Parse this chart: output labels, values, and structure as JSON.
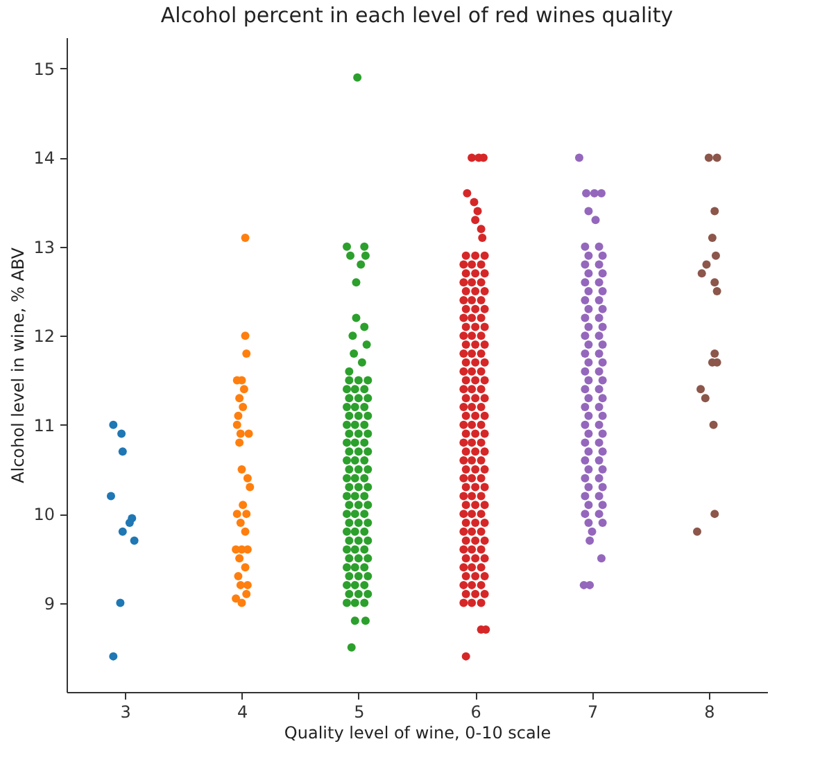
{
  "chart_data": {
    "type": "scatter",
    "title": "Alcohol percent in each level of red wines quality",
    "xlabel": "Quality level of wine, 0-10 scale",
    "ylabel": "Alcohol level in wine, % ABV",
    "xlim": [
      2.5,
      8.5
    ],
    "xticks": [
      3,
      4,
      5,
      6,
      7,
      8
    ],
    "ylim": [
      8,
      15.35
    ],
    "yticks": [
      9,
      10,
      11,
      12,
      13,
      14,
      15
    ],
    "marker": "circle",
    "series": [
      {
        "color": "#1f77b4",
        "x": [
          2.9,
          2.97,
          2.98,
          2.88,
          3.06,
          3.04,
          2.98,
          3.08,
          2.96,
          2.9
        ],
        "values": [
          11.0,
          10.9,
          10.7,
          10.2,
          9.95,
          9.9,
          9.8,
          9.7,
          9.0,
          8.4
        ]
      },
      {
        "color": "#ff7f0e",
        "x": [
          4.03,
          4.03,
          4.04,
          3.96,
          4.0,
          4.02,
          3.98,
          4.01,
          3.97,
          3.96,
          3.99,
          4.06,
          3.98,
          4.0,
          4.05,
          4.07,
          4.01,
          3.96,
          4.04,
          3.99,
          4.03,
          3.95,
          4.0,
          4.05,
          3.98,
          4.03,
          3.97,
          4.05,
          3.99,
          3.95,
          4.0,
          4.04
        ],
        "values": [
          13.1,
          12.0,
          11.8,
          11.5,
          11.5,
          11.4,
          11.3,
          11.2,
          11.1,
          11.0,
          10.9,
          10.9,
          10.8,
          10.5,
          10.4,
          10.3,
          10.1,
          10.0,
          10.0,
          9.9,
          9.8,
          9.6,
          9.6,
          9.6,
          9.5,
          9.4,
          9.3,
          9.2,
          9.2,
          9.05,
          9.0,
          9.1
        ]
      },
      {
        "color": "#2ca02c",
        "x": [
          4.99,
          4.9,
          5.05,
          4.93,
          5.06,
          5.02,
          4.98,
          4.98,
          5.05,
          4.95,
          5.07,
          4.96,
          5.03,
          4.92,
          4.92,
          5.0,
          5.08,
          4.9,
          4.97,
          5.05,
          4.92,
          5.0,
          5.08,
          4.9,
          4.97,
          5.05,
          4.92,
          5.0,
          5.08,
          4.9,
          4.97,
          5.05,
          4.92,
          5.0,
          5.08,
          4.9,
          4.97,
          5.05,
          4.92,
          5.0,
          5.08,
          4.9,
          4.97,
          5.05,
          4.92,
          5.0,
          5.08,
          4.9,
          4.97,
          5.05,
          4.92,
          5.0,
          5.08,
          4.9,
          4.97,
          5.05,
          4.92,
          5.0,
          5.08,
          4.9,
          4.97,
          5.05,
          4.92,
          5.0,
          5.08,
          4.9,
          4.97,
          5.05,
          4.92,
          5.0,
          5.08,
          4.9,
          4.97,
          5.05,
          4.92,
          5.0,
          5.08,
          4.9,
          4.97,
          5.05,
          4.92,
          5.0,
          5.08,
          4.9,
          4.97,
          5.05,
          4.92,
          5.0,
          5.08,
          4.9,
          4.97,
          5.05,
          4.97,
          5.06,
          4.94
        ],
        "values": [
          14.9,
          13.0,
          13.0,
          12.9,
          12.9,
          12.8,
          12.6,
          12.2,
          12.1,
          12.0,
          11.9,
          11.8,
          11.7,
          11.6,
          11.5,
          11.5,
          11.5,
          11.4,
          11.4,
          11.4,
          11.3,
          11.3,
          11.3,
          11.2,
          11.2,
          11.2,
          11.1,
          11.1,
          11.1,
          11.0,
          11.0,
          11.0,
          10.9,
          10.9,
          10.9,
          10.8,
          10.8,
          10.8,
          10.7,
          10.7,
          10.7,
          10.6,
          10.6,
          10.6,
          10.5,
          10.5,
          10.5,
          10.4,
          10.4,
          10.4,
          10.3,
          10.3,
          10.3,
          10.2,
          10.2,
          10.2,
          10.1,
          10.1,
          10.1,
          10.0,
          10.0,
          10.0,
          9.9,
          9.9,
          9.9,
          9.8,
          9.8,
          9.8,
          9.7,
          9.7,
          9.7,
          9.6,
          9.6,
          9.6,
          9.5,
          9.5,
          9.5,
          9.4,
          9.4,
          9.4,
          9.3,
          9.3,
          9.3,
          9.2,
          9.2,
          9.2,
          9.1,
          9.1,
          9.1,
          9.0,
          9.0,
          9.0,
          8.8,
          8.8,
          8.5
        ]
      },
      {
        "color": "#d62728",
        "x": [
          5.97,
          6.03,
          6.07,
          5.93,
          5.99,
          6.02,
          6.0,
          6.05,
          6.06,
          5.92,
          6.0,
          6.08,
          5.9,
          5.97,
          6.05,
          5.92,
          6.0,
          6.08,
          5.9,
          5.97,
          6.05,
          5.92,
          6.0,
          6.08,
          5.9,
          5.97,
          6.05,
          5.92,
          6.0,
          6.08,
          5.9,
          5.97,
          6.05,
          5.92,
          6.0,
          6.08,
          5.9,
          5.97,
          6.05,
          5.92,
          6.0,
          6.08,
          5.9,
          5.97,
          6.05,
          5.92,
          6.0,
          6.08,
          5.9,
          5.97,
          6.05,
          5.92,
          6.0,
          6.08,
          5.9,
          5.97,
          6.05,
          5.92,
          6.0,
          6.08,
          5.9,
          5.97,
          6.05,
          5.92,
          6.0,
          6.08,
          5.9,
          5.97,
          6.05,
          5.92,
          6.0,
          6.08,
          5.9,
          5.97,
          6.05,
          5.92,
          6.0,
          6.08,
          5.9,
          5.97,
          6.05,
          5.92,
          6.0,
          6.08,
          5.9,
          5.97,
          6.05,
          5.92,
          6.0,
          6.08,
          5.9,
          5.97,
          6.05,
          5.92,
          6.0,
          6.08,
          5.9,
          5.97,
          6.05,
          5.92,
          6.0,
          6.08,
          5.9,
          5.97,
          6.05,
          5.92,
          6.0,
          6.08,
          5.9,
          5.97,
          6.05,
          5.92,
          6.0,
          6.08,
          5.9,
          5.97,
          6.05,
          5.92,
          6.0,
          6.08,
          5.9,
          5.97,
          6.05,
          5.92,
          6.0,
          6.08,
          5.9,
          5.97,
          6.05,
          6.05,
          6.09,
          5.92
        ],
        "values": [
          14.0,
          14.0,
          14.0,
          13.6,
          13.5,
          13.4,
          13.3,
          13.2,
          13.1,
          12.9,
          12.9,
          12.9,
          12.8,
          12.8,
          12.8,
          12.7,
          12.7,
          12.7,
          12.6,
          12.6,
          12.6,
          12.5,
          12.5,
          12.5,
          12.4,
          12.4,
          12.4,
          12.3,
          12.3,
          12.3,
          12.2,
          12.2,
          12.2,
          12.1,
          12.1,
          12.1,
          12.0,
          12.0,
          12.0,
          11.9,
          11.9,
          11.9,
          11.8,
          11.8,
          11.8,
          11.7,
          11.7,
          11.7,
          11.6,
          11.6,
          11.6,
          11.5,
          11.5,
          11.5,
          11.4,
          11.4,
          11.4,
          11.3,
          11.3,
          11.3,
          11.2,
          11.2,
          11.2,
          11.1,
          11.1,
          11.1,
          11.0,
          11.0,
          11.0,
          10.9,
          10.9,
          10.9,
          10.8,
          10.8,
          10.8,
          10.7,
          10.7,
          10.7,
          10.6,
          10.6,
          10.6,
          10.5,
          10.5,
          10.5,
          10.4,
          10.4,
          10.4,
          10.3,
          10.3,
          10.3,
          10.2,
          10.2,
          10.2,
          10.1,
          10.1,
          10.1,
          10.0,
          10.0,
          10.0,
          9.9,
          9.9,
          9.9,
          9.8,
          9.8,
          9.8,
          9.7,
          9.7,
          9.7,
          9.6,
          9.6,
          9.6,
          9.5,
          9.5,
          9.5,
          9.4,
          9.4,
          9.4,
          9.3,
          9.3,
          9.3,
          9.2,
          9.2,
          9.2,
          9.1,
          9.1,
          9.1,
          9.0,
          9.0,
          9.0,
          8.7,
          8.7,
          8.4
        ]
      },
      {
        "color": "#9467bd",
        "x": [
          6.89,
          6.95,
          7.02,
          7.08,
          6.97,
          7.03,
          6.94,
          7.06,
          6.97,
          7.09,
          6.94,
          7.06,
          6.97,
          7.09,
          6.94,
          7.06,
          6.97,
          7.09,
          6.94,
          7.06,
          6.97,
          7.09,
          6.94,
          7.06,
          6.97,
          7.09,
          6.94,
          7.06,
          6.97,
          7.09,
          6.94,
          7.06,
          6.97,
          7.09,
          6.94,
          7.06,
          6.97,
          7.09,
          6.94,
          7.06,
          6.97,
          7.09,
          6.94,
          7.06,
          6.97,
          7.09,
          6.94,
          7.06,
          6.97,
          7.09,
          6.94,
          7.06,
          6.97,
          7.09,
          6.94,
          7.06,
          6.97,
          7.09,
          6.94,
          7.06,
          6.97,
          7.09,
          6.94,
          7.06,
          6.97,
          7.09,
          6.94,
          7.06,
          6.97,
          7.09,
          7.0,
          6.98,
          7.08,
          6.93,
          6.98
        ],
        "values": [
          14.0,
          13.6,
          13.6,
          13.6,
          13.4,
          13.3,
          13.0,
          13.0,
          12.9,
          12.9,
          12.8,
          12.8,
          12.7,
          12.7,
          12.6,
          12.6,
          12.5,
          12.5,
          12.4,
          12.4,
          12.3,
          12.3,
          12.2,
          12.2,
          12.1,
          12.1,
          12.0,
          12.0,
          11.9,
          11.9,
          11.8,
          11.8,
          11.7,
          11.7,
          11.6,
          11.6,
          11.5,
          11.5,
          11.4,
          11.4,
          11.3,
          11.3,
          11.2,
          11.2,
          11.1,
          11.1,
          11.0,
          11.0,
          10.9,
          10.9,
          10.8,
          10.8,
          10.7,
          10.7,
          10.6,
          10.6,
          10.5,
          10.5,
          10.4,
          10.4,
          10.3,
          10.3,
          10.2,
          10.2,
          10.1,
          10.1,
          10.0,
          10.0,
          9.9,
          9.9,
          9.8,
          9.7,
          9.5,
          9.2,
          9.2
        ]
      },
      {
        "color": "#8c564b",
        "x": [
          8.0,
          8.07,
          8.05,
          8.03,
          8.06,
          7.98,
          7.94,
          8.05,
          8.07,
          8.05,
          8.03,
          8.07,
          7.93,
          7.97,
          8.04,
          8.05,
          7.9
        ],
        "values": [
          14.0,
          14.0,
          13.4,
          13.1,
          12.9,
          12.8,
          12.7,
          12.6,
          12.5,
          11.8,
          11.7,
          11.7,
          11.4,
          11.3,
          11.0,
          10.0,
          9.8
        ]
      }
    ]
  }
}
